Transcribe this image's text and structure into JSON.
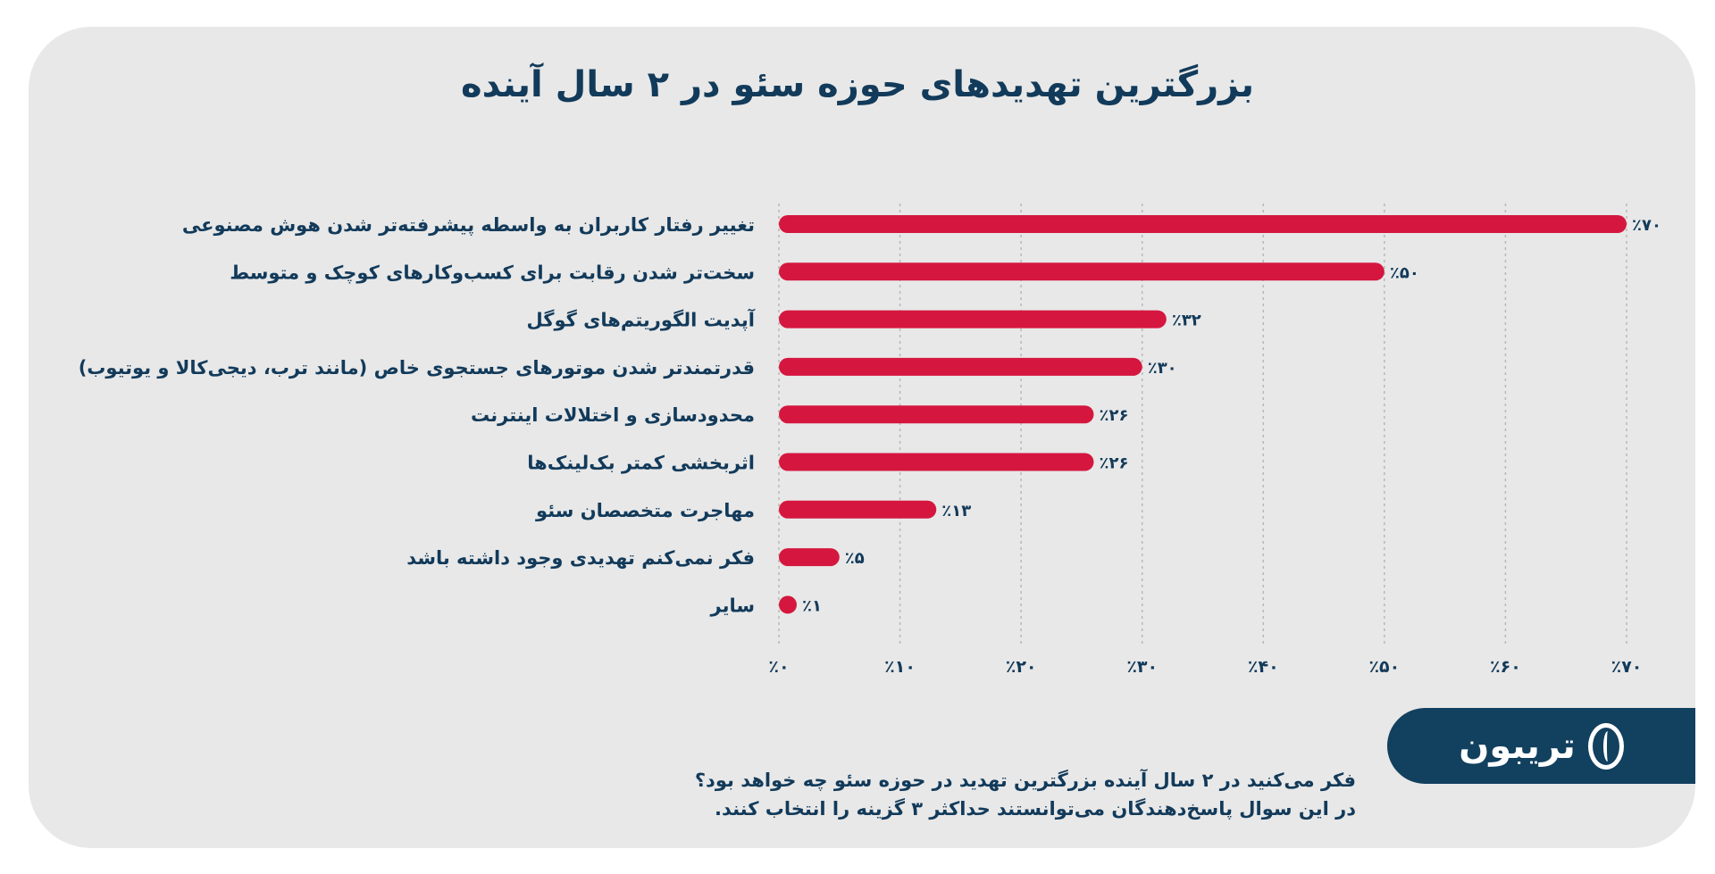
{
  "chart_data": {
    "type": "bar",
    "orientation": "horizontal",
    "title": "بزرگترین تهدیدهای حوزه سئو در ۲ سال آینده",
    "categories": [
      "تغییر رفتار کاربران به واسطه پیشرفته‌تر شدن هوش مصنوعی",
      "سخت‌تر شدن رقابت برای کسب‌وکارهای کوچک و متوسط",
      "آپدیت الگوریتم‌های گوگل",
      "قدرتمندتر شدن موتورهای جستجوی خاص (مانند ترب، دیجی‌کالا و یوتیوب)",
      "محدودسازی و اختلالات اینترنت",
      "اثربخشی کمتر بک‌لینک‌ها",
      "مهاجرت متخصصان سئو",
      "فکر نمی‌کنم تهدیدی وجود داشته باشد",
      "سایر"
    ],
    "values": [
      70,
      50,
      32,
      30,
      26,
      26,
      13,
      5,
      1
    ],
    "value_labels": [
      "٪۷۰",
      "٪۵۰",
      "٪۳۲",
      "٪۳۰",
      "٪۲۶",
      "٪۲۶",
      "٪۱۳",
      "٪۵",
      "٪۱"
    ],
    "xticks": [
      0,
      10,
      20,
      30,
      40,
      50,
      60,
      70
    ],
    "xtick_labels": [
      "٪۰",
      "٪۱۰",
      "٪۲۰",
      "٪۳۰",
      "٪۴۰",
      "٪۵۰",
      "٪۶۰",
      "٪۷۰"
    ],
    "xlim": [
      0,
      70
    ],
    "grid": true,
    "xlabel": "",
    "ylabel": ""
  },
  "colors": {
    "bar": "#d5173f",
    "text": "#123a5a",
    "panel": "#e8e8e8",
    "logo_bg": "#12405f"
  },
  "logo": {
    "text": "تریبون"
  },
  "note": {
    "line1": "فکر می‌کنید در ۲ سال آینده بزرگترین تهدید در حوزه سئو چه خواهد بود؟",
    "line2": "در این سوال پاسخ‌دهندگان می‌توانستند حداکثر ۳ گزینه را انتخاب کنند."
  }
}
